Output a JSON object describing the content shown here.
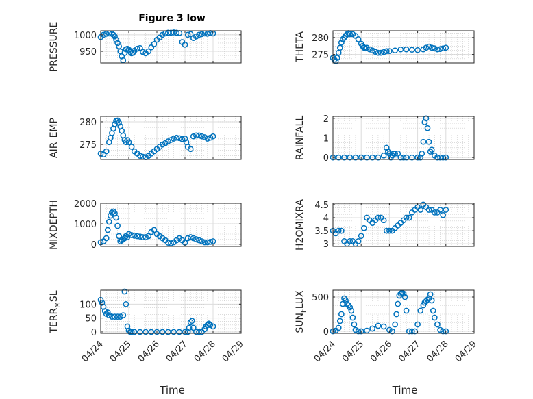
{
  "figure_title": "Figure 3 low",
  "marker_color": "#0072bd",
  "chart_data": [
    {
      "type": "scatter",
      "title": "Figure 3 low",
      "ylabel": "PRESSURE",
      "xlabel": "",
      "xlim": [
        0,
        5
      ],
      "ylim": [
        915,
        1012
      ],
      "yticks": [
        950,
        1000
      ],
      "xticklabels": [],
      "grid": true,
      "x": [
        0.0,
        0.1,
        0.2,
        0.3,
        0.4,
        0.45,
        0.5,
        0.55,
        0.6,
        0.65,
        0.7,
        0.75,
        0.8,
        0.85,
        0.9,
        0.95,
        1.0,
        1.05,
        1.1,
        1.15,
        1.2,
        1.3,
        1.4,
        1.5,
        1.6,
        1.7,
        1.8,
        1.9,
        2.0,
        2.1,
        2.2,
        2.3,
        2.4,
        2.5,
        2.6,
        2.7,
        2.8,
        2.9,
        3.0,
        3.1,
        3.2,
        3.3,
        3.4,
        3.5,
        3.6,
        3.7,
        3.8,
        3.9,
        4.0
      ],
      "y": [
        993,
        1000,
        1003,
        1004,
        1003,
        1000,
        995,
        985,
        975,
        965,
        950,
        935,
        923,
        945,
        956,
        958,
        955,
        948,
        944,
        946,
        952,
        958,
        960,
        948,
        944,
        950,
        962,
        972,
        985,
        992,
        1000,
        1004,
        1006,
        1006,
        1007,
        1006,
        1005,
        978,
        970,
        1000,
        1002,
        990,
        995,
        1000,
        1002,
        1004,
        1003,
        1005,
        1004
      ]
    },
    {
      "type": "scatter",
      "title": "",
      "ylabel": "THETA",
      "xlabel": "",
      "xlim": [
        0,
        5
      ],
      "ylim": [
        272.5,
        282
      ],
      "yticks": [
        275,
        280
      ],
      "xticklabels": [],
      "grid": true,
      "x": [
        0.0,
        0.05,
        0.1,
        0.15,
        0.2,
        0.25,
        0.3,
        0.35,
        0.4,
        0.45,
        0.5,
        0.55,
        0.6,
        0.7,
        0.8,
        0.9,
        1.0,
        1.05,
        1.1,
        1.15,
        1.2,
        1.3,
        1.4,
        1.5,
        1.6,
        1.7,
        1.8,
        1.9,
        2.0,
        2.2,
        2.4,
        2.6,
        2.8,
        3.0,
        3.2,
        3.3,
        3.4,
        3.5,
        3.6,
        3.7,
        3.8,
        3.9,
        4.0
      ],
      "y": [
        274,
        273.5,
        273,
        274,
        275.5,
        277,
        278.5,
        279.5,
        280,
        280.5,
        281,
        281.3,
        281,
        281,
        280.5,
        279.5,
        278.2,
        277.5,
        277,
        276.8,
        277,
        276.5,
        276.2,
        275.8,
        275.5,
        275.5,
        275.7,
        276,
        276,
        276.2,
        276.5,
        276.5,
        276.4,
        276.3,
        276.5,
        277,
        277.3,
        277,
        276.8,
        276.5,
        276.6,
        276.8,
        277
      ]
    },
    {
      "type": "scatter",
      "title": "",
      "ylabel": "AIR_TEMP",
      "ylabel_main": "AIR",
      "ylabel_sub": "T",
      "ylabel_end": "EMP",
      "xlabel": "",
      "xlim": [
        0,
        5
      ],
      "ylim": [
        271.7,
        281.2
      ],
      "yticks": [
        275,
        280
      ],
      "xticklabels": [],
      "grid": true,
      "x": [
        0.0,
        0.1,
        0.2,
        0.3,
        0.35,
        0.4,
        0.45,
        0.5,
        0.55,
        0.6,
        0.65,
        0.7,
        0.75,
        0.8,
        0.85,
        0.9,
        0.95,
        1.0,
        1.1,
        1.2,
        1.3,
        1.4,
        1.5,
        1.6,
        1.7,
        1.8,
        1.9,
        2.0,
        2.1,
        2.2,
        2.3,
        2.4,
        2.5,
        2.6,
        2.7,
        2.8,
        2.9,
        3.0,
        3.05,
        3.1,
        3.2,
        3.3,
        3.4,
        3.5,
        3.6,
        3.7,
        3.8,
        3.9,
        4.0
      ],
      "y": [
        273,
        272.8,
        273.5,
        275.5,
        276.5,
        277.5,
        278.5,
        279.5,
        280.2,
        280.3,
        279.8,
        279,
        278,
        277,
        276,
        275.5,
        276,
        275.5,
        274.5,
        273.5,
        273,
        272.5,
        272.3,
        272.2,
        272.5,
        273,
        273.5,
        274,
        274.5,
        275,
        275.3,
        275.7,
        276,
        276.3,
        276.5,
        276.4,
        276.2,
        276.3,
        275.5,
        274.5,
        274,
        276.8,
        277,
        277,
        276.8,
        276.6,
        276.3,
        276.5,
        276.8
      ]
    },
    {
      "type": "scatter",
      "title": "",
      "ylabel": "RAINFALL",
      "xlabel": "",
      "xlim": [
        0,
        5
      ],
      "ylim": [
        -0.1,
        2.1
      ],
      "yticks": [
        0,
        1,
        2
      ],
      "xticklabels": [],
      "grid": true,
      "x": [
        0.0,
        0.2,
        0.4,
        0.6,
        0.8,
        1.0,
        1.2,
        1.4,
        1.6,
        1.8,
        1.9,
        1.95,
        2.0,
        2.05,
        2.1,
        2.15,
        2.2,
        2.3,
        2.4,
        2.5,
        2.6,
        2.8,
        3.0,
        3.1,
        3.15,
        3.2,
        3.25,
        3.3,
        3.35,
        3.4,
        3.45,
        3.5,
        3.6,
        3.7,
        3.8,
        3.9,
        4.0
      ],
      "y": [
        0,
        0,
        0,
        0,
        0,
        0,
        0,
        0,
        0,
        0.1,
        0.5,
        0.3,
        0.2,
        0,
        0.1,
        0.2,
        0.2,
        0.2,
        0,
        0,
        0,
        0,
        0,
        0,
        0.2,
        0.8,
        1.8,
        2.0,
        1.5,
        0.8,
        0.3,
        0.4,
        0.1,
        0,
        0,
        0,
        0
      ]
    },
    {
      "type": "scatter",
      "title": "",
      "ylabel": "MIXDEPTH",
      "xlabel": "",
      "xlim": [
        0,
        5
      ],
      "ylim": [
        -100,
        2000
      ],
      "yticks": [
        0,
        1000,
        2000
      ],
      "xticklabels": [],
      "grid": true,
      "x": [
        0.0,
        0.1,
        0.2,
        0.25,
        0.3,
        0.35,
        0.4,
        0.45,
        0.5,
        0.55,
        0.6,
        0.65,
        0.7,
        0.75,
        0.8,
        0.85,
        0.9,
        0.95,
        1.0,
        1.1,
        1.2,
        1.3,
        1.4,
        1.5,
        1.6,
        1.7,
        1.8,
        1.9,
        2.0,
        2.1,
        2.2,
        2.3,
        2.4,
        2.5,
        2.6,
        2.7,
        2.8,
        2.9,
        3.0,
        3.1,
        3.2,
        3.3,
        3.4,
        3.5,
        3.6,
        3.7,
        3.8,
        3.9,
        4.0
      ],
      "y": [
        100,
        150,
        300,
        700,
        1100,
        1400,
        1550,
        1600,
        1500,
        1300,
        900,
        400,
        150,
        200,
        250,
        300,
        400,
        350,
        500,
        450,
        420,
        400,
        380,
        350,
        350,
        400,
        600,
        700,
        500,
        400,
        300,
        200,
        80,
        50,
        100,
        200,
        300,
        200,
        80,
        300,
        350,
        300,
        250,
        200,
        150,
        100,
        100,
        120,
        150
      ]
    },
    {
      "type": "scatter",
      "title": "",
      "ylabel": "H2OMIXRA",
      "xlabel": "",
      "xlim": [
        0,
        5
      ],
      "ylim": [
        2.9,
        4.55
      ],
      "yticks": [
        3,
        3.5,
        4,
        4.5
      ],
      "xticklabels": [],
      "grid": true,
      "x": [
        0.0,
        0.1,
        0.2,
        0.3,
        0.4,
        0.5,
        0.6,
        0.7,
        0.8,
        0.9,
        1.0,
        1.1,
        1.2,
        1.3,
        1.4,
        1.5,
        1.6,
        1.7,
        1.8,
        1.9,
        2.0,
        2.1,
        2.2,
        2.3,
        2.4,
        2.5,
        2.6,
        2.7,
        2.8,
        2.9,
        3.0,
        3.1,
        3.2,
        3.3,
        3.4,
        3.5,
        3.6,
        3.7,
        3.8,
        3.9,
        4.0
      ],
      "y": [
        3.5,
        3.4,
        3.5,
        3.5,
        3.1,
        3.0,
        3.1,
        3.1,
        3.0,
        3.1,
        3.3,
        3.6,
        4.0,
        3.9,
        3.8,
        3.9,
        4.0,
        4.0,
        3.9,
        3.5,
        3.5,
        3.5,
        3.6,
        3.7,
        3.8,
        3.9,
        4.0,
        4.0,
        4.2,
        4.3,
        4.4,
        4.3,
        4.5,
        4.4,
        4.3,
        4.3,
        4.2,
        4.2,
        4.3,
        4.1,
        4.3
      ]
    },
    {
      "type": "scatter",
      "title": "",
      "ylabel": "TERR_MSL",
      "ylabel_main": "TERR",
      "ylabel_sub": "M",
      "ylabel_end": "SL",
      "xlabel": "Time",
      "xlim": [
        0,
        5
      ],
      "ylim": [
        -5,
        150
      ],
      "yticks": [
        0,
        50,
        100
      ],
      "xticklabels": [
        "04/24",
        "04/25",
        "04/26",
        "04/27",
        "04/28",
        "04/29"
      ],
      "grid": true,
      "x": [
        0.0,
        0.05,
        0.1,
        0.15,
        0.2,
        0.25,
        0.3,
        0.4,
        0.5,
        0.6,
        0.7,
        0.8,
        0.85,
        0.9,
        0.95,
        1.0,
        1.05,
        1.1,
        1.2,
        1.4,
        1.6,
        1.8,
        2.0,
        2.2,
        2.4,
        2.6,
        2.8,
        3.0,
        3.1,
        3.15,
        3.2,
        3.25,
        3.3,
        3.4,
        3.5,
        3.6,
        3.7,
        3.75,
        3.8,
        3.85,
        3.9,
        4.0
      ],
      "y": [
        115,
        105,
        90,
        75,
        65,
        70,
        60,
        55,
        55,
        55,
        55,
        60,
        145,
        100,
        20,
        5,
        0,
        0,
        0,
        0,
        0,
        0,
        0,
        0,
        0,
        0,
        0,
        0,
        0,
        15,
        35,
        40,
        15,
        0,
        0,
        0,
        10,
        20,
        25,
        30,
        25,
        20
      ]
    },
    {
      "type": "scatter",
      "title": "",
      "ylabel": "SUN_FLUX",
      "ylabel_main": "SUN",
      "ylabel_sub": "F",
      "ylabel_end": "LUX",
      "xlabel": "Time",
      "xlim": [
        0,
        5
      ],
      "ylim": [
        -30,
        600
      ],
      "yticks": [
        0,
        500
      ],
      "xticklabels": [
        "04/24",
        "04/25",
        "04/26",
        "04/27",
        "04/28",
        "04/29"
      ],
      "grid": true,
      "x": [
        0.0,
        0.1,
        0.2,
        0.25,
        0.3,
        0.35,
        0.4,
        0.45,
        0.5,
        0.55,
        0.6,
        0.65,
        0.7,
        0.75,
        0.8,
        0.9,
        1.0,
        1.2,
        1.4,
        1.6,
        1.8,
        2.0,
        2.1,
        2.2,
        2.25,
        2.3,
        2.35,
        2.4,
        2.45,
        2.5,
        2.55,
        2.6,
        2.7,
        2.8,
        2.9,
        3.0,
        3.1,
        3.2,
        3.25,
        3.3,
        3.35,
        3.4,
        3.45,
        3.5,
        3.55,
        3.6,
        3.7,
        3.8,
        3.9,
        4.0
      ],
      "y": [
        0,
        10,
        50,
        150,
        250,
        400,
        480,
        450,
        400,
        380,
        350,
        300,
        200,
        100,
        20,
        0,
        0,
        10,
        40,
        80,
        70,
        20,
        0,
        100,
        250,
        400,
        520,
        550,
        560,
        550,
        500,
        300,
        0,
        0,
        0,
        100,
        300,
        380,
        420,
        440,
        460,
        480,
        540,
        450,
        300,
        200,
        100,
        20,
        0,
        0
      ]
    }
  ]
}
